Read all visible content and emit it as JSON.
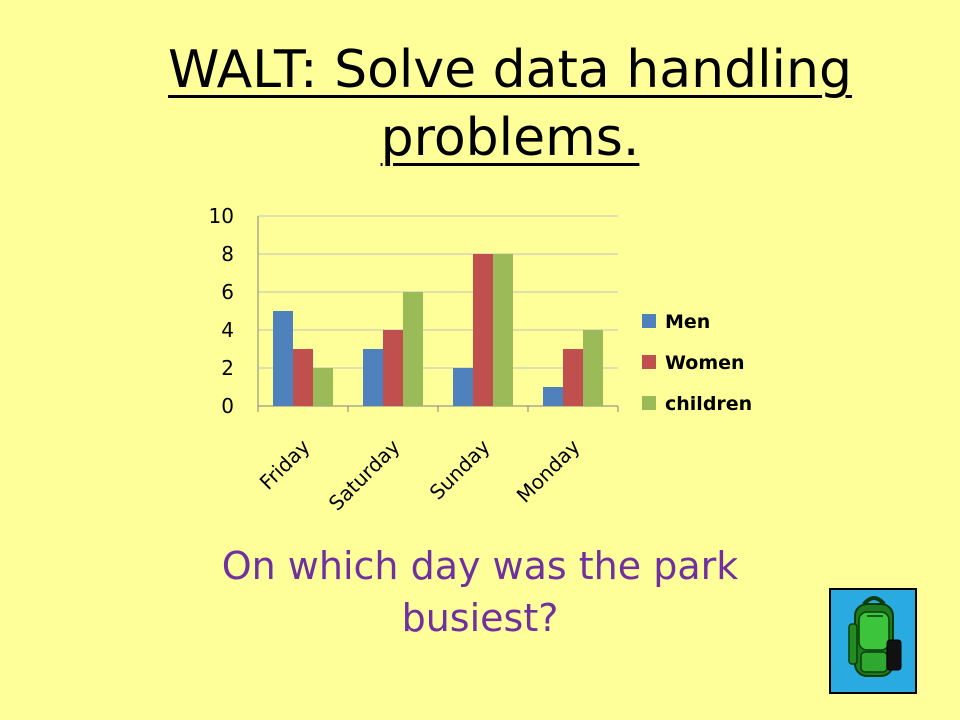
{
  "slide": {
    "title_line1": "WALT: Solve data handling",
    "title_line2": "problems.",
    "question_line1": "On which day was the park",
    "question_line2": "busiest?",
    "icon": "backpack-icon"
  },
  "colors": {
    "background": "#FFFF99",
    "men": "#4F81BD",
    "women": "#C0504D",
    "children": "#9BBB59",
    "question_text": "#7030A0",
    "icon_background": "#29ABE2"
  },
  "chart_data": {
    "type": "bar",
    "categories": [
      "Friday",
      "Saturday",
      "Sunday",
      "Monday"
    ],
    "series": [
      {
        "name": "Men",
        "values": [
          5,
          3,
          2,
          1
        ]
      },
      {
        "name": "Women",
        "values": [
          3,
          4,
          8,
          3
        ]
      },
      {
        "name": "children",
        "values": [
          2,
          6,
          8,
          4
        ]
      }
    ],
    "yticks": [
      "0",
      "2",
      "4",
      "6",
      "8",
      "10"
    ],
    "ylim": [
      0,
      10
    ],
    "title": "",
    "xlabel": "",
    "ylabel": "",
    "grid": true,
    "legend_position": "right"
  }
}
